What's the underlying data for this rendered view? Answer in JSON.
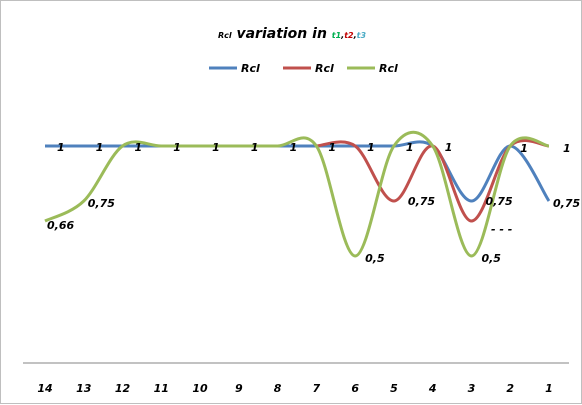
{
  "chart_data": {
    "type": "line",
    "title_prefix": "Rcl",
    "title_mid": " variation in ",
    "title_t1": "t1",
    "title_sep1": ",",
    "title_t2": "t2",
    "title_sep2": ",",
    "title_t3": "t3",
    "categories": [
      "14",
      "13",
      "12",
      "11",
      "10",
      "9",
      "8",
      "7",
      "6",
      "5",
      "4",
      "3",
      "2",
      "1"
    ],
    "ylim": [
      0,
      1.8
    ],
    "series": [
      {
        "name": "Rcl",
        "color": "#4f81bd",
        "values": [
          1,
          1,
          1,
          1,
          1,
          1,
          1,
          1,
          1,
          1,
          1,
          0.75,
          1,
          0.75
        ]
      },
      {
        "name": "Rcl",
        "color": "#c0504d",
        "values": [
          null,
          null,
          null,
          null,
          null,
          null,
          null,
          1,
          1,
          0.75,
          1,
          0.66,
          1,
          1
        ]
      },
      {
        "name": "Rcl",
        "color": "#9bbb59",
        "values": [
          0.66,
          0.75,
          1,
          1,
          1,
          1,
          1,
          1,
          0.5,
          1,
          1,
          0.5,
          1,
          1
        ]
      }
    ],
    "title_colors": {
      "t1": "#00b050",
      "t2": "#c00000",
      "t3": "#4bacc6"
    },
    "data_labels": [
      {
        "text": "1",
        "cat": 0,
        "y": 1
      },
      {
        "text": "1",
        "cat": 1,
        "y": 1
      },
      {
        "text": "1",
        "cat": 2,
        "y": 1
      },
      {
        "text": "1",
        "cat": 3,
        "y": 1
      },
      {
        "text": "1",
        "cat": 4,
        "y": 1
      },
      {
        "text": "1",
        "cat": 5,
        "y": 1
      },
      {
        "text": "1",
        "cat": 6,
        "y": 1
      },
      {
        "text": "1",
        "cat": 7,
        "y": 1
      },
      {
        "text": "1",
        "cat": 8,
        "y": 1
      },
      {
        "text": "1",
        "cat": 9,
        "y": 1
      },
      {
        "text": "1",
        "cat": 10,
        "y": 1
      },
      {
        "text": "1",
        "cat": 12,
        "y": 1
      },
      {
        "text": "1",
        "cat": 13,
        "y": 1
      },
      {
        "text": "0,66",
        "cat": 0,
        "y": 0.66
      },
      {
        "text": "0,75",
        "cat": 1,
        "y": 0.75
      },
      {
        "text": "0,5",
        "cat": 8,
        "y": 0.5
      },
      {
        "text": "0,75",
        "cat": 9,
        "y": 0.75
      },
      {
        "text": "0,75",
        "cat": 11,
        "y": 0.75
      },
      {
        "text": "0,5",
        "cat": 11,
        "y": 0.5
      },
      {
        "text": "0,75",
        "cat": 13,
        "y": 0.75
      }
    ],
    "annotation": "- - -"
  }
}
